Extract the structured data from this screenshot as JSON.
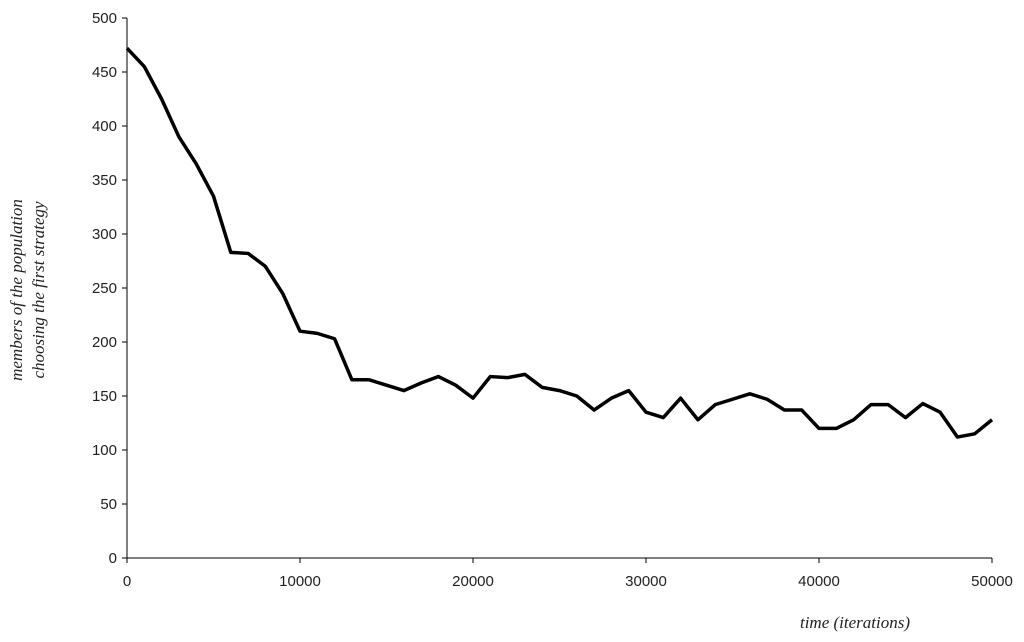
{
  "chart_data": {
    "type": "line",
    "ylabel": [
      "members of the population",
      "choosing the first strategy"
    ],
    "xlabel": "time (iterations)",
    "x": [
      0,
      1000,
      2000,
      3000,
      4000,
      5000,
      6000,
      7000,
      8000,
      9000,
      10000,
      11000,
      12000,
      13000,
      14000,
      15000,
      16000,
      17000,
      18000,
      19000,
      20000,
      21000,
      22000,
      23000,
      24000,
      25000,
      26000,
      27000,
      28000,
      29000,
      30000,
      31000,
      32000,
      33000,
      34000,
      35000,
      36000,
      37000,
      38000,
      39000,
      40000,
      41000,
      42000,
      43000,
      44000,
      45000,
      46000,
      47000,
      48000,
      49000,
      50000
    ],
    "series": [
      {
        "color": "#000000",
        "values": [
          472,
          455,
          425,
          390,
          365,
          335,
          283,
          282,
          270,
          245,
          210,
          208,
          203,
          165,
          165,
          160,
          155,
          162,
          168,
          160,
          148,
          168,
          167,
          170,
          158,
          155,
          150,
          137,
          148,
          155,
          135,
          130,
          148,
          128,
          142,
          147,
          152,
          147,
          137,
          137,
          120,
          120,
          128,
          142,
          142,
          130,
          143,
          135,
          112,
          115,
          128
        ]
      }
    ],
    "xlim": [
      0,
      50000
    ],
    "xticks": [
      0,
      10000,
      20000,
      30000,
      40000,
      50000
    ],
    "ylim": [
      0,
      500
    ],
    "yticks": [
      0,
      50,
      100,
      150,
      200,
      250,
      300,
      350,
      400,
      450,
      500
    ]
  }
}
